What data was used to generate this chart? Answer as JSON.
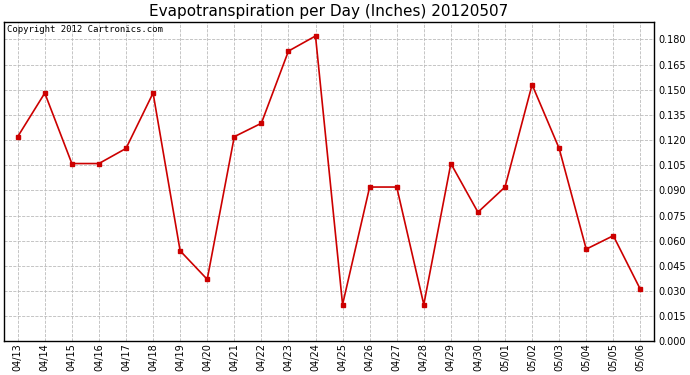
{
  "title": "Evapotranspiration per Day (Inches) 20120507",
  "copyright_text": "Copyright 2012 Cartronics.com",
  "x_labels": [
    "04/13",
    "04/14",
    "04/15",
    "04/16",
    "04/17",
    "04/18",
    "04/19",
    "04/20",
    "04/21",
    "04/22",
    "04/23",
    "04/24",
    "04/25",
    "04/26",
    "04/27",
    "04/28",
    "04/29",
    "04/30",
    "05/01",
    "05/02",
    "05/03",
    "05/04",
    "05/05",
    "05/06"
  ],
  "y_values": [
    0.122,
    0.148,
    0.106,
    0.106,
    0.115,
    0.148,
    0.054,
    0.037,
    0.122,
    0.13,
    0.173,
    0.182,
    0.022,
    0.092,
    0.092,
    0.022,
    0.106,
    0.077,
    0.092,
    0.153,
    0.115,
    0.055,
    0.063,
    0.031
  ],
  "line_color": "#cc0000",
  "marker": "s",
  "marker_size": 2.5,
  "line_width": 1.2,
  "y_min": 0.0,
  "y_max": 0.1905,
  "y_tick_step": 0.015,
  "background_color": "#ffffff",
  "plot_bg_color": "#ffffff",
  "grid_color": "#bbbbbb",
  "title_fontsize": 11,
  "copyright_fontsize": 6.5,
  "tick_fontsize": 7,
  "axes_linewidth": 1.0
}
